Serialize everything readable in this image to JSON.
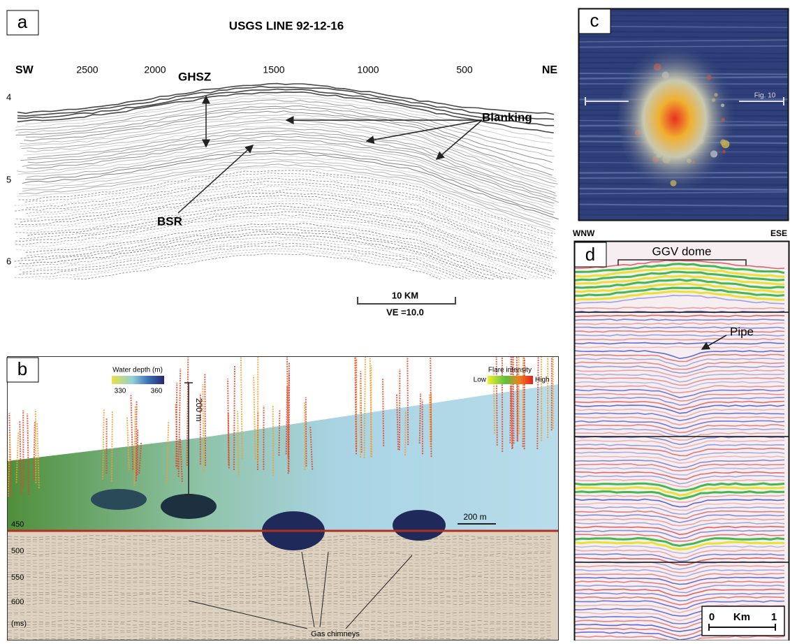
{
  "panels": [
    {
      "label": "a",
      "title": "USGS LINE 92-12-16",
      "x_axis": {
        "left": "SW",
        "right": "NE",
        "ticks": [
          "2500",
          "2000",
          "1500",
          "1000",
          "500"
        ]
      },
      "y_axis": {
        "ticks": [
          "4",
          "5",
          "6"
        ]
      },
      "annotations": [
        "GHSZ",
        "Blanking",
        "BSR"
      ],
      "scale_bar": {
        "length": "10 KM",
        "exaggeration": "VE =10.0"
      }
    },
    {
      "label": "b",
      "depth_legend": {
        "title": "Water depth (m)",
        "ticks": [
          "330",
          "360"
        ]
      },
      "flare_legend": {
        "title": "Flare intensity",
        "low": "Low",
        "high": "High"
      },
      "vertical_scale": "200 m",
      "horizontal_scale": "200 m",
      "y_axis": {
        "ticks": [
          "450",
          "500",
          "550",
          "600",
          "(ms)"
        ]
      },
      "annotation": "Gas chimneys"
    },
    {
      "label": "c",
      "annotation": "Fig. 10"
    },
    {
      "label": "d",
      "left": "WNW",
      "right": "ESE",
      "annotations": [
        "GGV dome",
        "Pipe"
      ],
      "scale_bar": {
        "start": "0",
        "unit": "Km",
        "end": "1"
      }
    }
  ]
}
